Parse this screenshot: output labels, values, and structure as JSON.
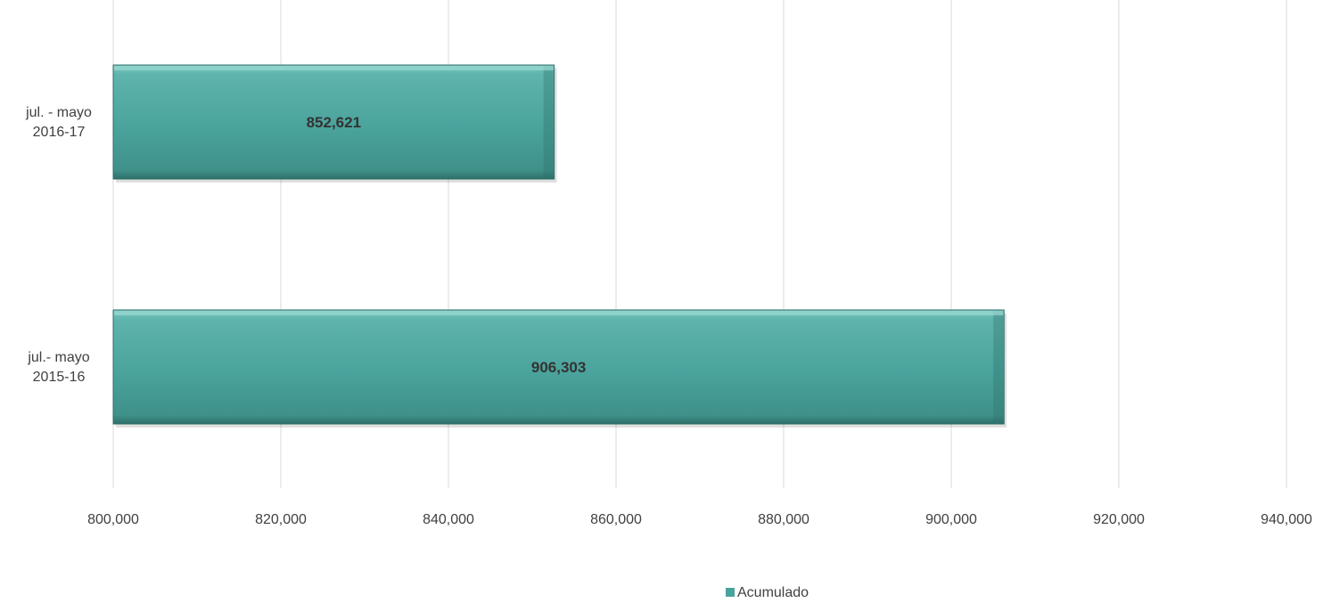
{
  "chart_data": {
    "type": "bar",
    "orientation": "horizontal",
    "title": "",
    "xlabel": "",
    "ylabel": "",
    "categories": [
      [
        "jul. - mayo",
        "2016-17"
      ],
      [
        "jul.- mayo",
        "2015-16"
      ]
    ],
    "series": [
      {
        "name": "Acumulado",
        "values": [
          852621,
          906303
        ],
        "color": "#4aa39c",
        "data_labels": [
          "852,621",
          "906,303"
        ]
      }
    ],
    "xlim": [
      800000,
      940000
    ],
    "ticks": [
      800000,
      820000,
      840000,
      860000,
      880000,
      900000,
      920000,
      940000
    ],
    "tick_labels": [
      "800,000",
      "820,000",
      "840,000",
      "860,000",
      "880,000",
      "900,000",
      "920,000",
      "940,000"
    ],
    "grid": true,
    "legend": {
      "position": "bottom",
      "entries": [
        "Acumulado"
      ]
    }
  }
}
